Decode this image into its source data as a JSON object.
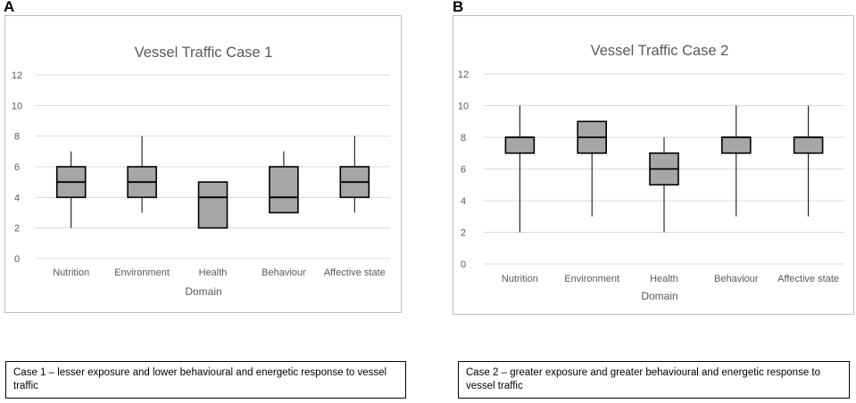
{
  "panels": [
    {
      "letter": "A"
    },
    {
      "letter": "B"
    }
  ],
  "captions": [
    {
      "text": "Case 1 – lesser exposure and lower behavioural and energetic response to vessel traffic"
    },
    {
      "text": "Case 2 – greater exposure and greater behavioural and energetic response to vessel traffic"
    }
  ],
  "chart_data": [
    {
      "type": "box",
      "title": "Vessel Traffic Case 1",
      "xlabel": "Domain",
      "ylabel": "",
      "ylim": [
        0,
        12
      ],
      "yticks": [
        0,
        2,
        4,
        6,
        8,
        10,
        12
      ],
      "grid": true,
      "categories": [
        "Nutrition",
        "Environment",
        "Health",
        "Behaviour",
        "Affective state"
      ],
      "boxes": [
        {
          "min": 2,
          "q1": 4,
          "median": 5,
          "q3": 6,
          "max": 7
        },
        {
          "min": 3,
          "q1": 4,
          "median": 5,
          "q3": 6,
          "max": 8
        },
        {
          "min": 2,
          "q1": 2,
          "median": 4,
          "q3": 5,
          "max": 5
        },
        {
          "min": 3,
          "q1": 3,
          "median": 4,
          "q3": 6,
          "max": 7
        },
        {
          "min": 3,
          "q1": 4,
          "median": 5,
          "q3": 6,
          "max": 8
        }
      ],
      "colors": {
        "box_fill": "#a6a6a6",
        "box_stroke": "#000000",
        "grid": "#d9d9d9",
        "text": "#595959"
      }
    },
    {
      "type": "box",
      "title": "Vessel Traffic Case 2",
      "xlabel": "Domain",
      "ylabel": "",
      "ylim": [
        0,
        12
      ],
      "yticks": [
        0,
        2,
        4,
        6,
        8,
        10,
        12
      ],
      "grid": true,
      "categories": [
        "Nutrition",
        "Environment",
        "Health",
        "Behaviour",
        "Affective state"
      ],
      "boxes": [
        {
          "min": 2,
          "q1": 7,
          "median": 8,
          "q3": 8,
          "max": 10
        },
        {
          "min": 3,
          "q1": 7,
          "median": 8,
          "q3": 9,
          "max": 9
        },
        {
          "min": 2,
          "q1": 5,
          "median": 6,
          "q3": 7,
          "max": 8
        },
        {
          "min": 3,
          "q1": 7,
          "median": 8,
          "q3": 8,
          "max": 10
        },
        {
          "min": 3,
          "q1": 7,
          "median": 8,
          "q3": 8,
          "max": 10
        }
      ],
      "colors": {
        "box_fill": "#a6a6a6",
        "box_stroke": "#000000",
        "grid": "#d9d9d9",
        "text": "#595959"
      }
    }
  ]
}
